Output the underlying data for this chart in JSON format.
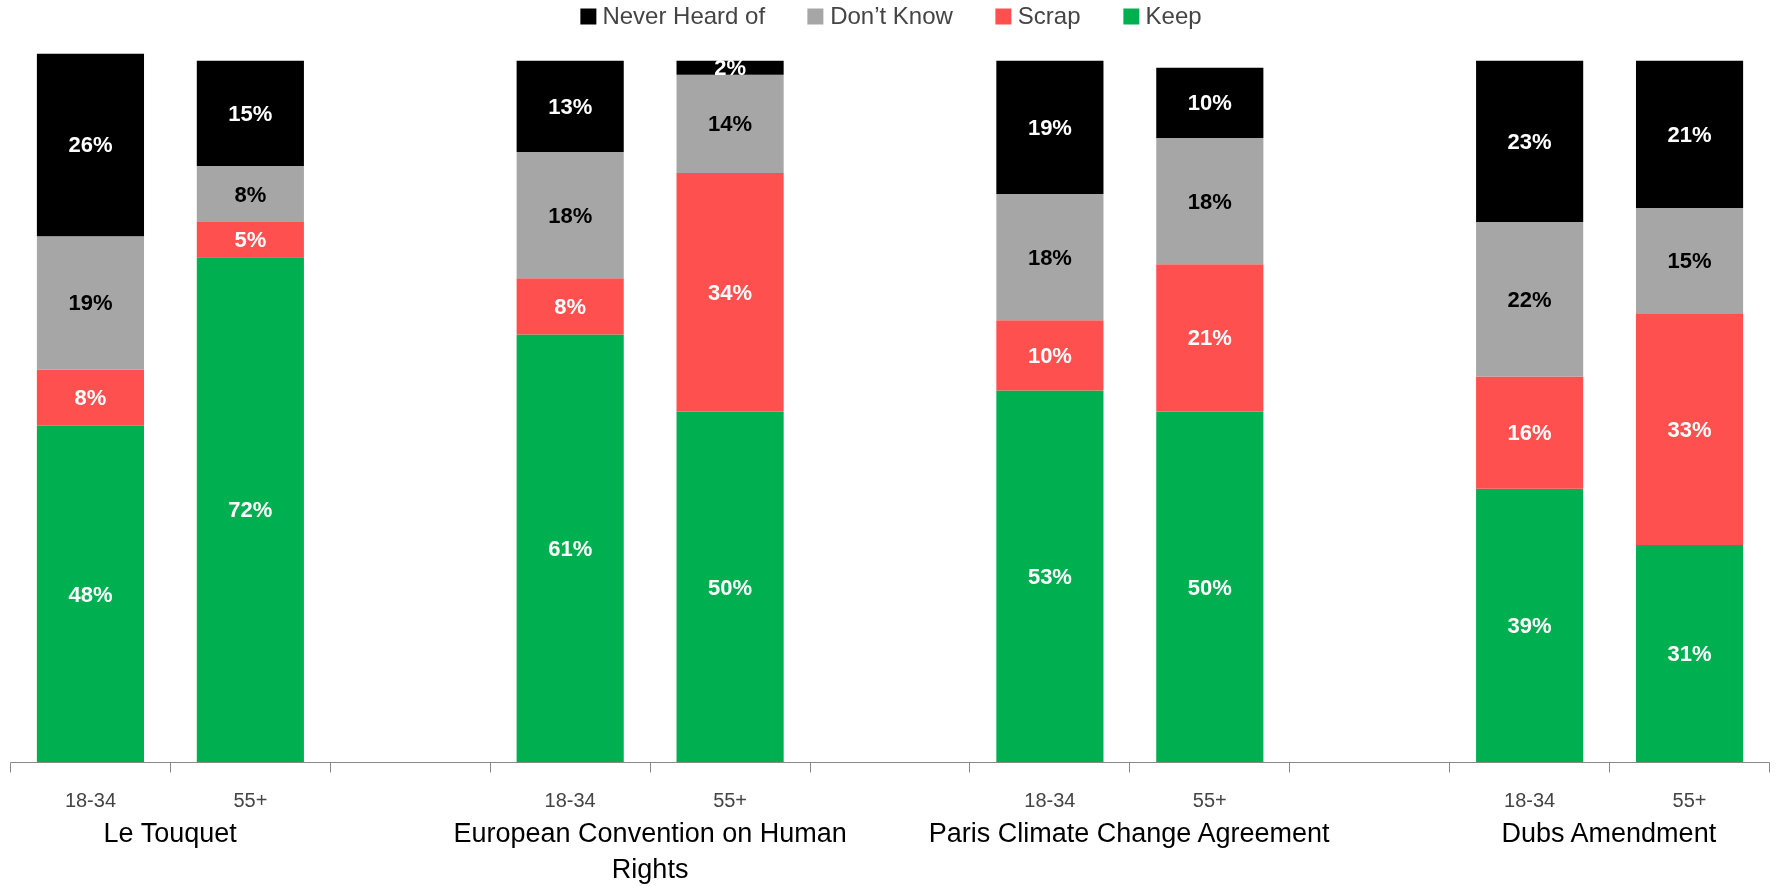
{
  "chart_data": {
    "type": "bar",
    "stacked": true,
    "data_labels": true,
    "legend": "top",
    "grid": false,
    "categories": [
      "18-34",
      "55+",
      null,
      "18-34",
      "55+",
      null,
      "18-34",
      "55+",
      null,
      "18-34",
      "55+"
    ],
    "series": [
      {
        "name": "Keep",
        "color": "#00b050",
        "values": [
          48,
          72,
          null,
          61,
          50,
          null,
          53,
          50,
          null,
          39,
          31
        ],
        "value_labels": [
          "48%",
          "72%",
          null,
          "61%",
          "50%",
          null,
          "53%",
          "50%",
          null,
          "39%",
          "31%"
        ]
      },
      {
        "name": "Scrap",
        "color": "#ff5050",
        "values": [
          8,
          5,
          null,
          8,
          34,
          null,
          10,
          21,
          null,
          16,
          33
        ],
        "value_labels": [
          "8%",
          "5%",
          null,
          "8%",
          "34%",
          null,
          "10%",
          "21%",
          null,
          "16%",
          "33%"
        ]
      },
      {
        "name": "Don’t Know",
        "color": "#a6a6a6",
        "values": [
          19,
          8,
          null,
          18,
          14,
          null,
          18,
          18,
          null,
          22,
          15
        ],
        "value_labels": [
          "19%",
          "8%",
          null,
          "18%",
          "14%",
          null,
          "18%",
          "18%",
          null,
          "22%",
          "15%"
        ]
      },
      {
        "name": "Never Heard of",
        "color": "#000000",
        "values": [
          26,
          15,
          null,
          13,
          2,
          null,
          19,
          10,
          null,
          23,
          21
        ],
        "value_labels": [
          "26%",
          "15%",
          null,
          "13%",
          "2%",
          null,
          "19%",
          "10%",
          null,
          "23%",
          "21%"
        ]
      }
    ],
    "annotations": [
      "Le Touquet",
      "European Convention on Human Rights",
      "Paris Climate Change Agreement",
      "Dubs Amendment"
    ]
  }
}
